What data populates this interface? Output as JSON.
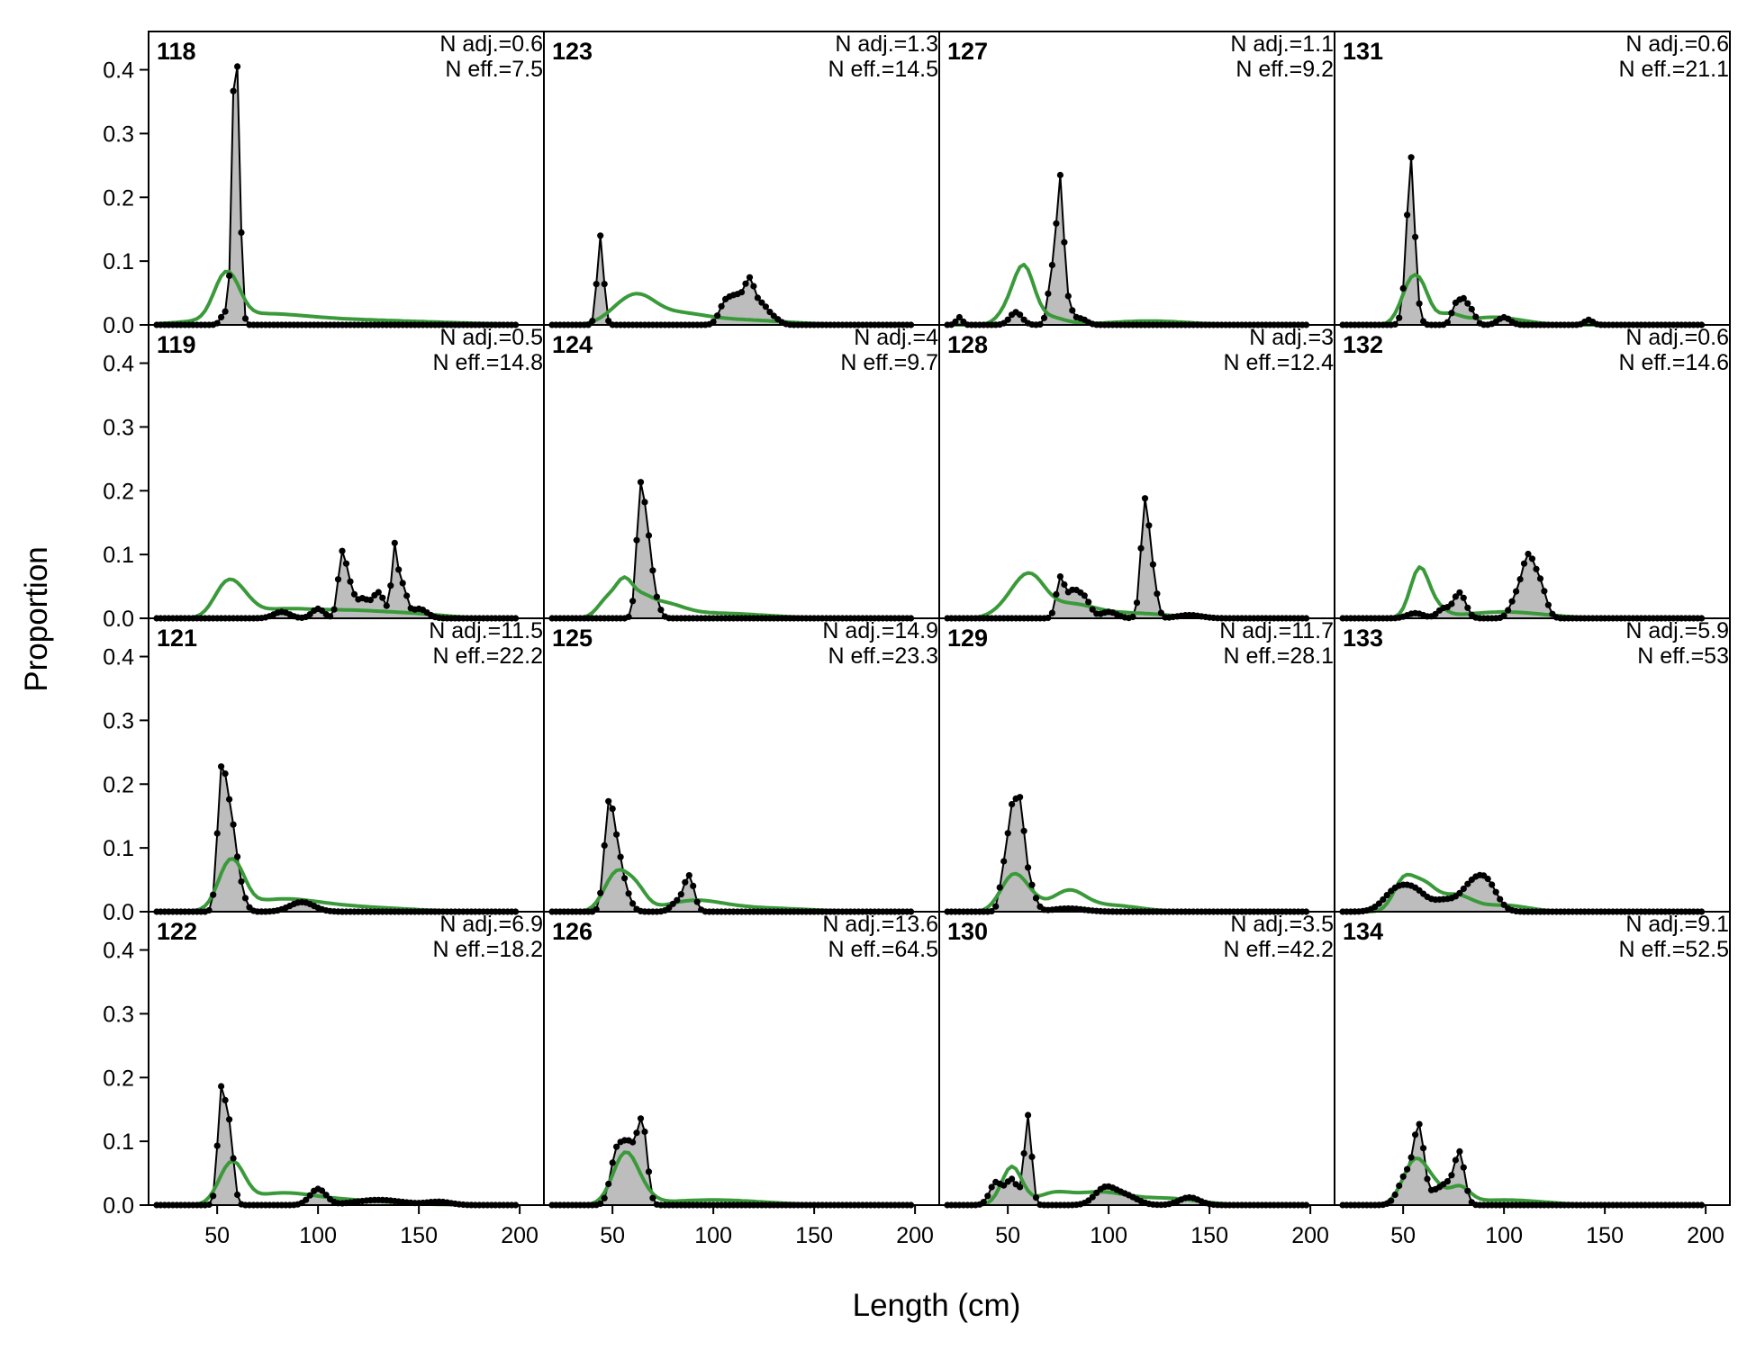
{
  "chart_data": {
    "type": "area",
    "xlabel": "Length (cm)",
    "ylabel": "Proportion",
    "xlim": [
      16,
      212
    ],
    "ylim": [
      0,
      0.46
    ],
    "x_ticks": [
      50,
      100,
      150,
      200
    ],
    "y_ticks": [
      0.0,
      0.1,
      0.2,
      0.3,
      0.4
    ],
    "y_tick_labels": [
      "0.0",
      "0.1",
      "0.2",
      "0.3",
      "0.4"
    ],
    "x_tick_labels": [
      "50",
      "100",
      "150",
      "200"
    ],
    "length_bins": {
      "start": 20,
      "end": 198,
      "step": 2
    },
    "layout": {
      "rows": 4,
      "cols": 4,
      "order": "column-major"
    },
    "colors": {
      "observed_fill": "#bdbdbd",
      "observed_line": "#000000",
      "expected_line": "#3a9a3a",
      "zero_line": "#b5b5b5"
    },
    "series_desc": [
      {
        "name": "observed",
        "style": "grey filled polygon with black points"
      },
      {
        "name": "expected",
        "style": "green line"
      }
    ],
    "panels": [
      {
        "id": "118",
        "n_adj": "N adj.=0.6",
        "n_eff": "N eff.=7.5",
        "obs_peaks": [
          [
            60,
            0.35,
            1.5
          ],
          [
            58,
            0.22,
            1.2
          ],
          [
            54,
            0.02,
            2
          ]
        ],
        "exp_peaks": [
          [
            52,
            0.045,
            5
          ],
          [
            58,
            0.04,
            5
          ],
          [
            70,
            0.012,
            22
          ],
          [
            110,
            0.008,
            45
          ]
        ]
      },
      {
        "id": "119",
        "n_adj": "N adj.=0.5",
        "n_eff": "N eff.=14.8",
        "obs_peaks": [
          [
            112,
            0.1,
            2
          ],
          [
            116,
            0.04,
            2
          ],
          [
            122,
            0.03,
            3
          ],
          [
            130,
            0.04,
            3
          ],
          [
            138,
            0.11,
            1.5
          ],
          [
            142,
            0.05,
            2
          ],
          [
            150,
            0.015,
            4
          ],
          [
            100,
            0.015,
            3
          ],
          [
            82,
            0.01,
            4
          ]
        ],
        "exp_peaks": [
          [
            54,
            0.045,
            6
          ],
          [
            62,
            0.025,
            6
          ],
          [
            80,
            0.012,
            15
          ],
          [
            115,
            0.012,
            20
          ],
          [
            150,
            0.005,
            15
          ]
        ]
      },
      {
        "id": "121",
        "n_adj": "N adj.=11.5",
        "n_eff": "N eff.=22.2",
        "obs_peaks": [
          [
            52,
            0.19,
            2
          ],
          [
            56,
            0.13,
            2.5
          ],
          [
            60,
            0.05,
            3
          ],
          [
            92,
            0.015,
            6
          ]
        ],
        "exp_peaks": [
          [
            54,
            0.045,
            5
          ],
          [
            60,
            0.045,
            5
          ],
          [
            80,
            0.015,
            18
          ],
          [
            110,
            0.008,
            30
          ]
        ]
      },
      {
        "id": "122",
        "n_adj": "N adj.=6.9",
        "n_eff": "N eff.=18.2",
        "obs_peaks": [
          [
            52,
            0.17,
            1.8
          ],
          [
            56,
            0.12,
            2
          ],
          [
            100,
            0.025,
            4
          ],
          [
            130,
            0.008,
            12
          ],
          [
            160,
            0.005,
            6
          ]
        ],
        "exp_peaks": [
          [
            54,
            0.035,
            5
          ],
          [
            60,
            0.04,
            5
          ],
          [
            80,
            0.015,
            16
          ],
          [
            110,
            0.008,
            25
          ]
        ]
      },
      {
        "id": "123",
        "n_adj": "N adj.=1.3",
        "n_eff": "N eff.=14.5",
        "obs_peaks": [
          [
            44,
            0.14,
            1.6
          ],
          [
            106,
            0.035,
            3
          ],
          [
            112,
            0.04,
            3
          ],
          [
            118,
            0.065,
            2.5
          ],
          [
            124,
            0.03,
            3
          ],
          [
            130,
            0.01,
            3
          ]
        ],
        "exp_peaks": [
          [
            54,
            0.02,
            8
          ],
          [
            64,
            0.03,
            8
          ],
          [
            80,
            0.015,
            14
          ],
          [
            110,
            0.008,
            25
          ]
        ]
      },
      {
        "id": "124",
        "n_adj": "N adj.=4",
        "n_eff": "N eff.=9.7",
        "obs_peaks": [
          [
            64,
            0.2,
            2
          ],
          [
            68,
            0.1,
            2
          ],
          [
            72,
            0.02,
            2
          ]
        ],
        "exp_peaks": [
          [
            48,
            0.03,
            5
          ],
          [
            56,
            0.045,
            4
          ],
          [
            64,
            0.02,
            5
          ],
          [
            74,
            0.02,
            10
          ],
          [
            100,
            0.008,
            25
          ]
        ]
      },
      {
        "id": "125",
        "n_adj": "N adj.=14.9",
        "n_eff": "N eff.=23.3",
        "obs_peaks": [
          [
            48,
            0.15,
            2.2
          ],
          [
            52,
            0.08,
            2.5
          ],
          [
            56,
            0.03,
            3
          ],
          [
            88,
            0.055,
            2.5
          ],
          [
            82,
            0.015,
            3
          ]
        ],
        "exp_peaks": [
          [
            52,
            0.06,
            6
          ],
          [
            62,
            0.03,
            5
          ],
          [
            90,
            0.015,
            14
          ],
          [
            120,
            0.006,
            25
          ]
        ]
      },
      {
        "id": "126",
        "n_adj": "N adj.=13.6",
        "n_eff": "N eff.=64.5",
        "obs_peaks": [
          [
            52,
            0.08,
            3
          ],
          [
            58,
            0.085,
            3
          ],
          [
            64,
            0.1,
            2.5
          ],
          [
            66,
            0.04,
            2
          ]
        ],
        "exp_peaks": [
          [
            56,
            0.075,
            6
          ],
          [
            64,
            0.015,
            6
          ],
          [
            100,
            0.008,
            25
          ]
        ]
      },
      {
        "id": "127",
        "n_adj": "N adj.=1.1",
        "n_eff": "N eff.=9.2",
        "obs_peaks": [
          [
            76,
            0.22,
            1.7
          ],
          [
            72,
            0.08,
            2
          ],
          [
            80,
            0.03,
            2
          ],
          [
            54,
            0.02,
            3
          ],
          [
            26,
            0.012,
            1.5
          ],
          [
            86,
            0.01,
            3
          ]
        ],
        "exp_peaks": [
          [
            58,
            0.085,
            5
          ],
          [
            50,
            0.02,
            5
          ],
          [
            70,
            0.012,
            8
          ],
          [
            120,
            0.006,
            20
          ]
        ]
      },
      {
        "id": "128",
        "n_adj": "N adj.=3",
        "n_eff": "N eff.=12.4",
        "obs_peaks": [
          [
            118,
            0.18,
            2
          ],
          [
            122,
            0.06,
            2
          ],
          [
            76,
            0.06,
            2
          ],
          [
            82,
            0.04,
            3
          ],
          [
            88,
            0.03,
            3
          ],
          [
            100,
            0.01,
            4
          ],
          [
            140,
            0.005,
            6
          ]
        ],
        "exp_peaks": [
          [
            54,
            0.03,
            8
          ],
          [
            62,
            0.045,
            7
          ],
          [
            80,
            0.02,
            12
          ],
          [
            110,
            0.008,
            20
          ]
        ]
      },
      {
        "id": "129",
        "n_adj": "N adj.=11.7",
        "n_eff": "N eff.=28.1",
        "obs_peaks": [
          [
            52,
            0.14,
            2
          ],
          [
            56,
            0.14,
            2
          ],
          [
            60,
            0.05,
            3
          ],
          [
            48,
            0.06,
            2
          ],
          [
            80,
            0.005,
            8
          ]
        ],
        "exp_peaks": [
          [
            52,
            0.05,
            6
          ],
          [
            60,
            0.02,
            6
          ],
          [
            80,
            0.03,
            8
          ],
          [
            100,
            0.01,
            15
          ]
        ]
      },
      {
        "id": "130",
        "n_adj": "N adj.=3.5",
        "n_eff": "N eff.=42.2",
        "obs_peaks": [
          [
            60,
            0.14,
            1.8
          ],
          [
            44,
            0.035,
            3
          ],
          [
            52,
            0.04,
            3
          ],
          [
            98,
            0.025,
            5
          ],
          [
            108,
            0.015,
            6
          ],
          [
            140,
            0.012,
            5
          ]
        ],
        "exp_peaks": [
          [
            52,
            0.06,
            5
          ],
          [
            72,
            0.015,
            8
          ],
          [
            95,
            0.02,
            14
          ],
          [
            130,
            0.01,
            15
          ]
        ]
      },
      {
        "id": "131",
        "n_adj": "N adj.=0.6",
        "n_eff": "N eff.=21.1",
        "obs_peaks": [
          [
            54,
            0.19,
            1.6
          ],
          [
            52,
            0.08,
            2
          ],
          [
            56,
            0.04,
            2
          ],
          [
            76,
            0.03,
            2
          ],
          [
            80,
            0.035,
            2
          ],
          [
            84,
            0.02,
            2
          ],
          [
            100,
            0.012,
            3
          ],
          [
            142,
            0.008,
            2
          ]
        ],
        "exp_peaks": [
          [
            54,
            0.065,
            5
          ],
          [
            60,
            0.03,
            4
          ],
          [
            72,
            0.015,
            6
          ],
          [
            95,
            0.012,
            14
          ]
        ]
      },
      {
        "id": "132",
        "n_adj": "N adj.=0.6",
        "n_eff": "N eff.=14.6",
        "obs_peaks": [
          [
            78,
            0.04,
            3
          ],
          [
            70,
            0.015,
            3
          ],
          [
            112,
            0.09,
            3
          ],
          [
            118,
            0.05,
            3
          ],
          [
            106,
            0.03,
            3
          ],
          [
            56,
            0.008,
            4
          ]
        ],
        "exp_peaks": [
          [
            58,
            0.075,
            4.5
          ],
          [
            66,
            0.015,
            5
          ],
          [
            100,
            0.01,
            20
          ]
        ]
      },
      {
        "id": "133",
        "n_adj": "N adj.=5.9",
        "n_eff": "N eff.=53",
        "obs_peaks": [
          [
            46,
            0.03,
            6
          ],
          [
            56,
            0.03,
            6
          ],
          [
            84,
            0.04,
            6
          ],
          [
            92,
            0.035,
            5
          ],
          [
            70,
            0.015,
            5
          ]
        ],
        "exp_peaks": [
          [
            50,
            0.045,
            5
          ],
          [
            60,
            0.04,
            6
          ],
          [
            76,
            0.025,
            8
          ],
          [
            100,
            0.01,
            12
          ]
        ]
      },
      {
        "id": "134",
        "n_adj": "N adj.=9.1",
        "n_eff": "N eff.=52.5",
        "obs_peaks": [
          [
            58,
            0.11,
            2.5
          ],
          [
            52,
            0.05,
            4
          ],
          [
            78,
            0.08,
            2.5
          ],
          [
            72,
            0.03,
            3
          ],
          [
            66,
            0.02,
            3
          ]
        ],
        "exp_peaks": [
          [
            56,
            0.07,
            6
          ],
          [
            66,
            0.02,
            5
          ],
          [
            78,
            0.025,
            5
          ],
          [
            100,
            0.008,
            20
          ]
        ]
      }
    ]
  }
}
